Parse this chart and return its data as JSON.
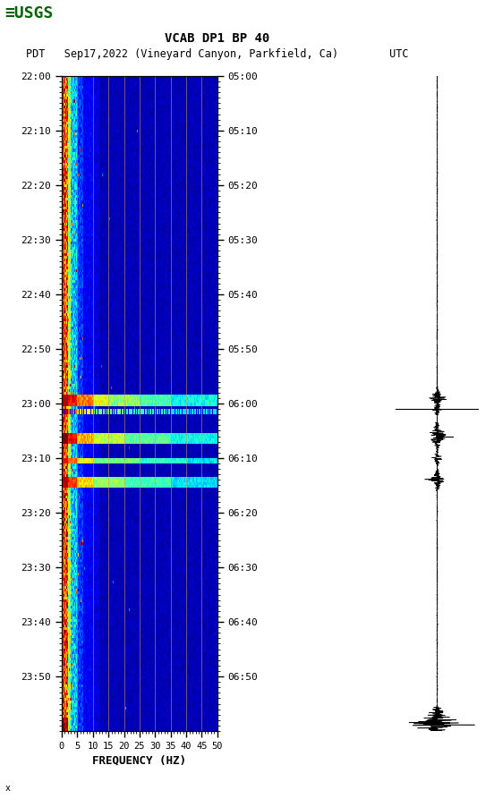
{
  "title_line1": "VCAB DP1 BP 40",
  "title_line2": "PDT   Sep17,2022 (Vineyard Canyon, Parkfield, Ca)        UTC",
  "xlabel": "FREQUENCY (HZ)",
  "freq_min": 0,
  "freq_max": 50,
  "freq_ticks": [
    0,
    5,
    10,
    15,
    20,
    25,
    30,
    35,
    40,
    45,
    50
  ],
  "time_left_labels": [
    "22:00",
    "22:10",
    "22:20",
    "22:30",
    "22:40",
    "22:50",
    "23:00",
    "23:10",
    "23:20",
    "23:30",
    "23:40",
    "23:50"
  ],
  "time_right_labels": [
    "05:00",
    "05:10",
    "05:20",
    "05:30",
    "05:40",
    "05:50",
    "06:00",
    "06:10",
    "06:20",
    "06:30",
    "06:40",
    "06:50"
  ],
  "n_time_steps": 240,
  "n_freq_steps": 200,
  "background_color": "#ffffff",
  "colormap": "jet",
  "vline_color": "#c8a050",
  "vline_alpha": 0.55,
  "vline_lw": 0.7
}
